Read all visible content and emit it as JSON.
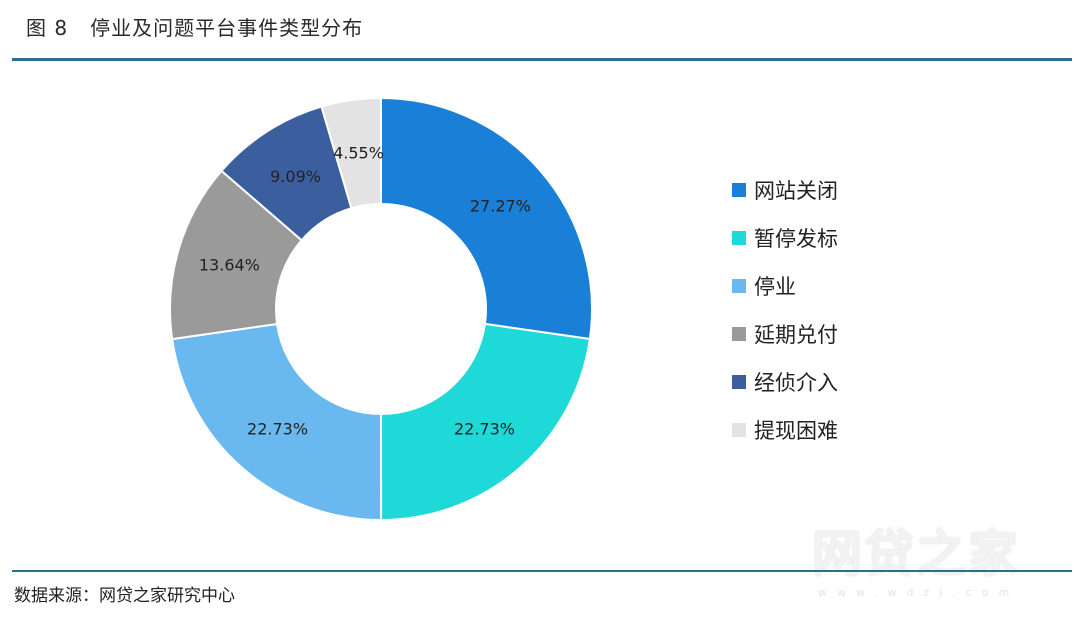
{
  "header": {
    "figure_no": "图 8",
    "title": "停业及问题平台事件类型分布"
  },
  "footer": {
    "source": "数据来源：网贷之家研究中心"
  },
  "watermark": {
    "text": "网贷之家",
    "sub": "www.wdzj.com"
  },
  "chart_data": {
    "type": "pie",
    "variant": "donut",
    "title": "停业及问题平台事件类型分布",
    "legend_position": "right",
    "categories": [
      "网站关闭",
      "暂停发标",
      "停业",
      "延期兑付",
      "经侦介入",
      "提现困难"
    ],
    "values": [
      27.27,
      22.73,
      22.73,
      13.64,
      9.09,
      4.55
    ],
    "labels": [
      "27.27%",
      "22.73%",
      "22.73%",
      "13.64%",
      "9.09%",
      "4.55%"
    ],
    "colors": [
      "#1a7fd6",
      "#1fd8d8",
      "#6ab8f0",
      "#9a9a9a",
      "#3b5f9e",
      "#e3e3e3"
    ]
  }
}
